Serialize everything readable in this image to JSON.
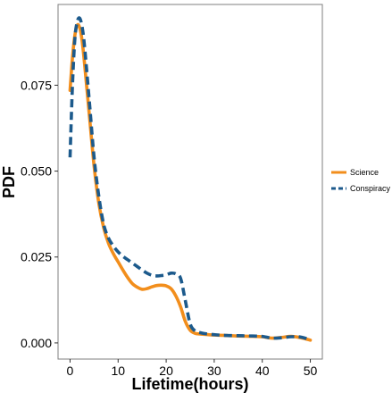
{
  "chart_data": {
    "type": "line",
    "title": "",
    "xlabel": "Lifetime(hours)",
    "ylabel": "PDF",
    "xlim": [
      -2.5,
      52.5
    ],
    "ylim": [
      -0.0047,
      0.0985
    ],
    "xticks": [
      0,
      10,
      20,
      30,
      40,
      50
    ],
    "xtick_labels": [
      "0",
      "10",
      "20",
      "30",
      "40",
      "50"
    ],
    "yticks": [
      0,
      0.025,
      0.05,
      0.075
    ],
    "ytick_labels": [
      "0.000",
      "0.025",
      "0.050",
      "0.075"
    ],
    "grid": false,
    "legend_position": "right",
    "series": [
      {
        "name": "Science",
        "color": "#f28e1c",
        "style": "solid",
        "x": [
          0,
          0.5,
          1,
          1.5,
          2,
          2.5,
          3,
          4,
          5,
          6,
          7,
          8,
          9,
          10,
          11,
          12,
          13,
          14,
          15,
          16,
          17,
          18,
          19,
          20,
          21,
          22,
          23,
          24,
          25,
          26,
          27,
          28,
          30,
          32,
          35,
          38,
          40,
          42,
          44,
          46,
          48,
          50
        ],
        "y": [
          0.0735,
          0.083,
          0.0895,
          0.0925,
          0.0918,
          0.088,
          0.0815,
          0.0665,
          0.0515,
          0.0405,
          0.0335,
          0.029,
          0.026,
          0.0236,
          0.0212,
          0.019,
          0.0172,
          0.0162,
          0.0156,
          0.0158,
          0.0163,
          0.0167,
          0.0168,
          0.0166,
          0.0158,
          0.0137,
          0.0105,
          0.0062,
          0.0037,
          0.0028,
          0.0026,
          0.0025,
          0.0023,
          0.0022,
          0.002,
          0.0019,
          0.0018,
          0.0014,
          0.0016,
          0.0019,
          0.0015,
          0.0008
        ]
      },
      {
        "name": "Conspiracy",
        "color": "#1c5a8c",
        "style": "dashed",
        "x": [
          0,
          0.5,
          1,
          1.5,
          2,
          2.5,
          3,
          4,
          5,
          6,
          7,
          8,
          9,
          10,
          11,
          12,
          13,
          14,
          15,
          16,
          17,
          18,
          19,
          20,
          21,
          22,
          23,
          24,
          25,
          26,
          27,
          28,
          30,
          32,
          35,
          38,
          40,
          42,
          44,
          46,
          48,
          50
        ],
        "y": [
          0.054,
          0.075,
          0.0885,
          0.0935,
          0.0945,
          0.092,
          0.0865,
          0.0705,
          0.054,
          0.0425,
          0.0345,
          0.0305,
          0.0282,
          0.0265,
          0.0252,
          0.0242,
          0.0232,
          0.0222,
          0.0212,
          0.0203,
          0.0197,
          0.0195,
          0.0196,
          0.0198,
          0.0203,
          0.0201,
          0.0188,
          0.0122,
          0.0055,
          0.0035,
          0.003,
          0.0027,
          0.0024,
          0.0022,
          0.0021,
          0.002,
          0.0019,
          0.0014,
          0.0015,
          0.0018,
          0.0017,
          0.0009
        ]
      }
    ]
  }
}
